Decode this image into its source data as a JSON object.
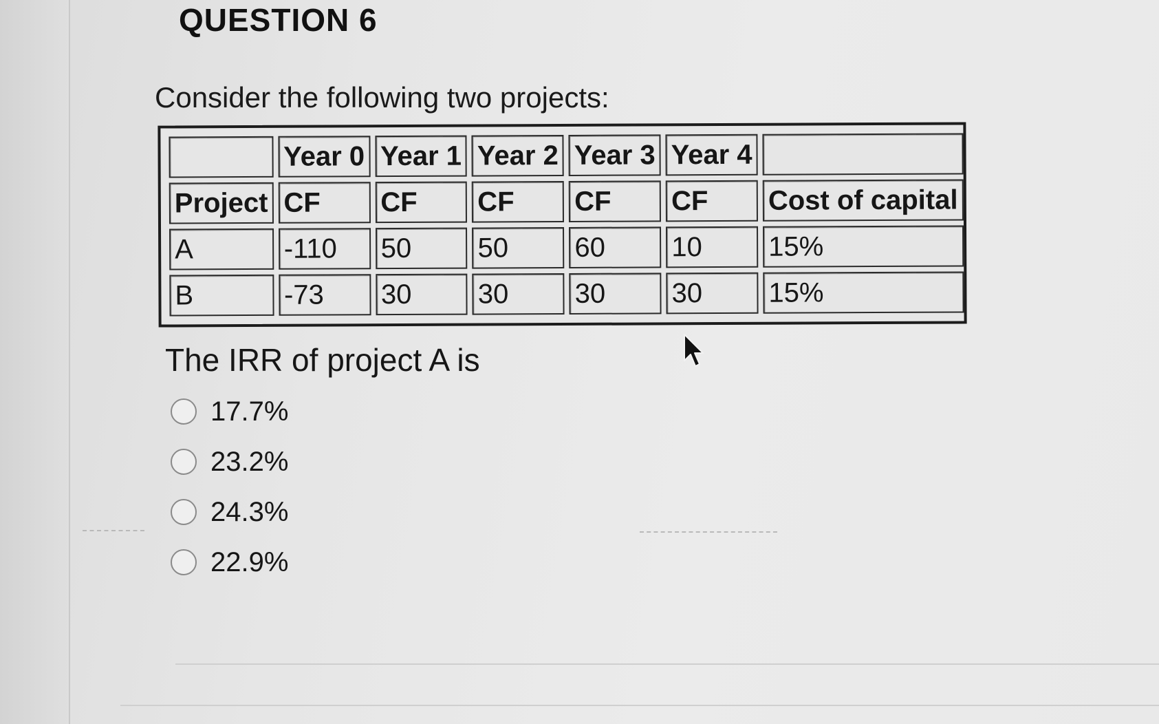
{
  "question": {
    "title": "QUESTION 6",
    "prompt": "Consider the following two projects:",
    "irr_question": "The IRR of project A is"
  },
  "table": {
    "header_row_1": [
      "",
      "Year 0",
      "Year 1",
      "Year 2",
      "Year 3",
      "Year 4",
      ""
    ],
    "header_row_2": [
      "Project",
      "CF",
      "CF",
      "CF",
      "CF",
      "CF",
      "Cost of capital"
    ],
    "rows": [
      [
        "A",
        "-110",
        "50",
        "50",
        "60",
        "10",
        "15%"
      ],
      [
        "B",
        "-73",
        "30",
        "30",
        "30",
        "30",
        "15%"
      ]
    ]
  },
  "options": [
    "17.7%",
    "23.2%",
    "24.3%",
    "22.9%"
  ],
  "icons": {
    "cursor": "mouse-pointer-icon",
    "radio": "radio-circle-icon"
  }
}
